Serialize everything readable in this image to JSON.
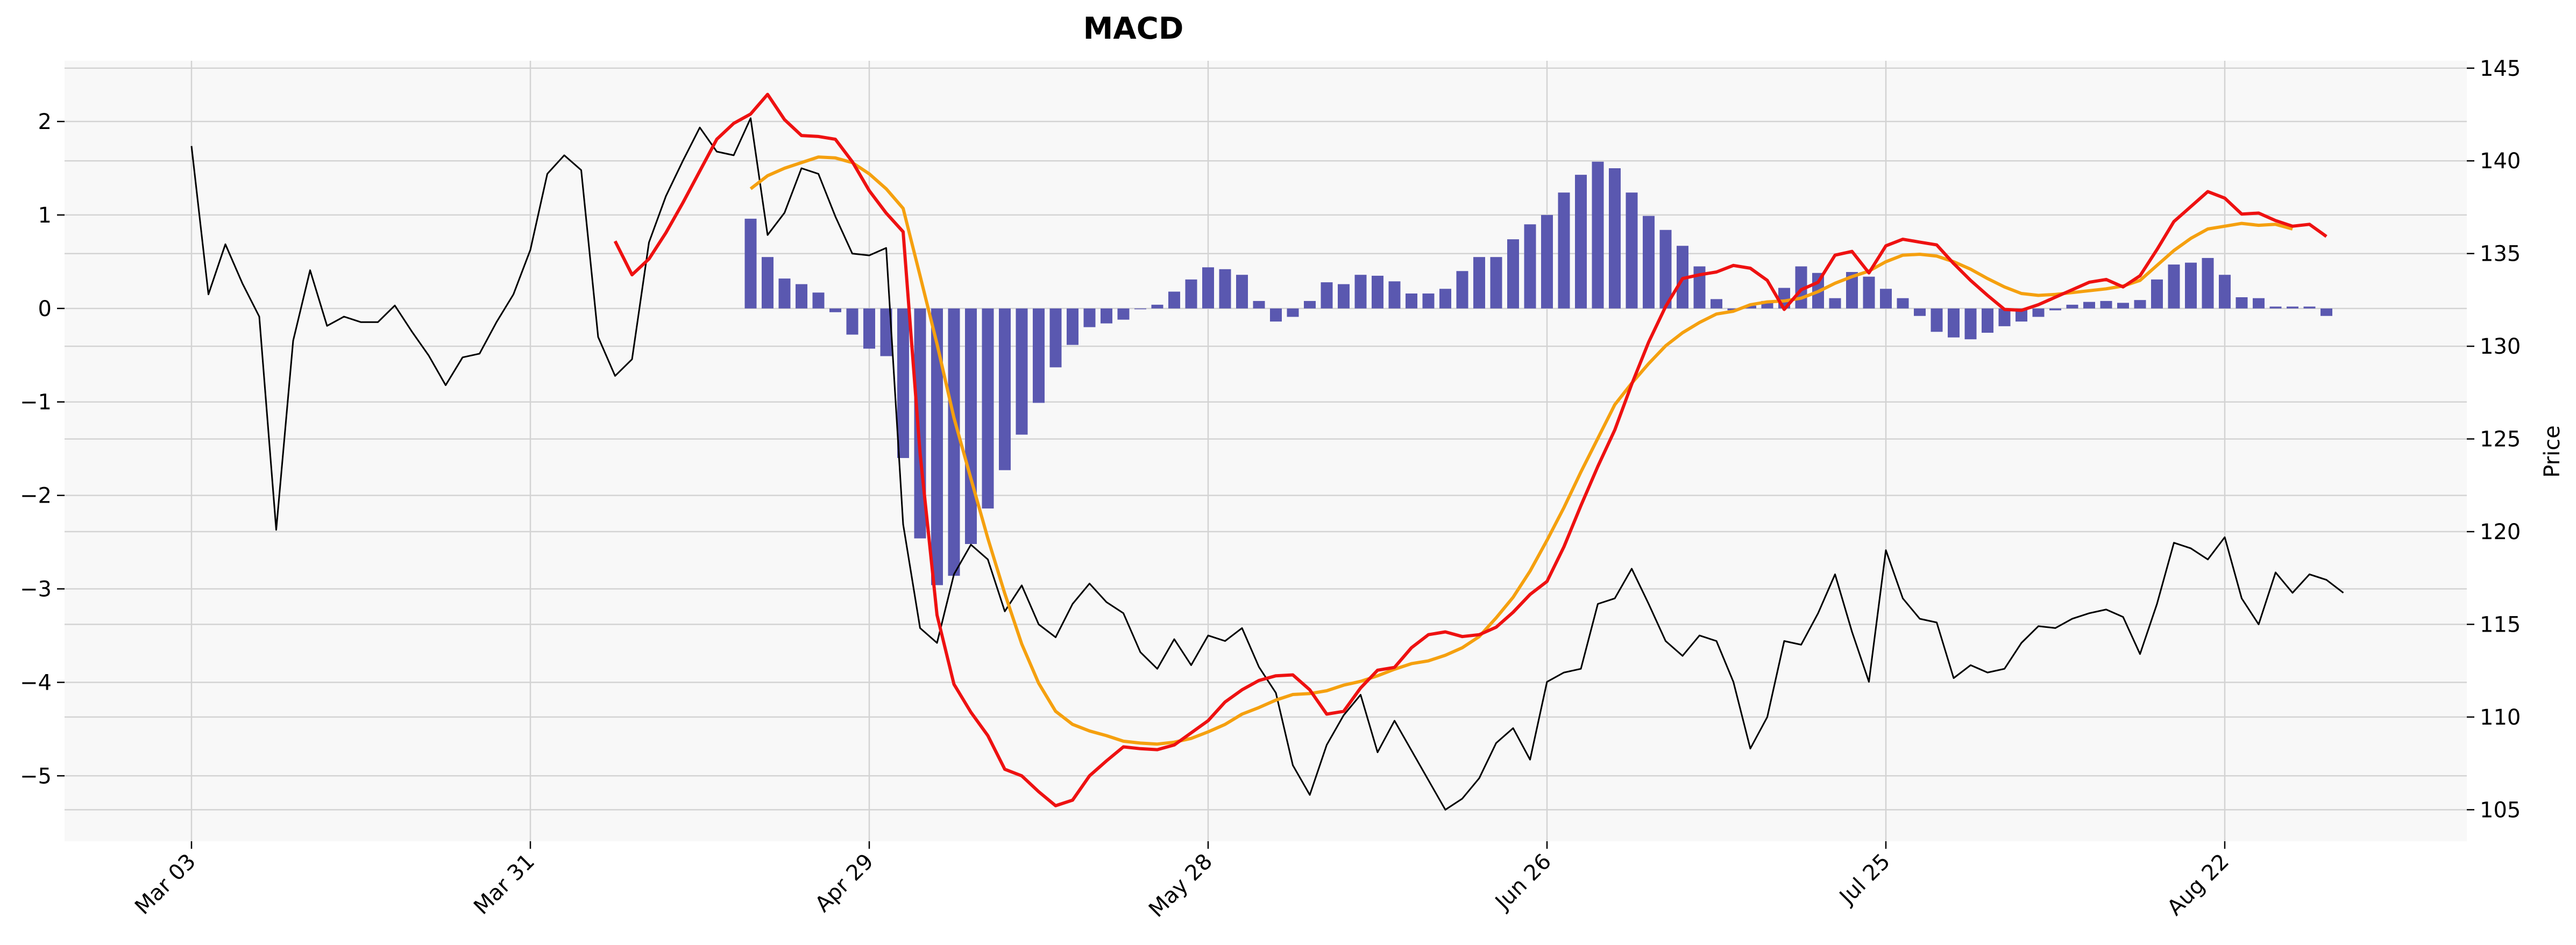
{
  "chart_data": {
    "type": "line",
    "title": "MACD",
    "xlabel": "",
    "ylabel": "",
    "ylabel_right": "Price",
    "x_tick_labels": [
      "Mar 03",
      "Mar 31",
      "Apr 29",
      "May 28",
      "Jun 26",
      "Jul 25",
      "Aug 22"
    ],
    "y_left_ticks": [
      2,
      1,
      0,
      -1,
      -2,
      -3,
      -4,
      -5
    ],
    "y_left_tick_labels": [
      "2",
      "1",
      "0",
      "−1",
      "−2",
      "−3",
      "−4",
      "−5"
    ],
    "ylim_left": [
      -5.7,
      2.65
    ],
    "y_right_ticks": [
      145,
      140,
      135,
      130,
      125,
      120,
      115,
      110,
      105
    ],
    "ylim_right": [
      103.3,
      145.4
    ],
    "grid": true,
    "legend": "none",
    "colors": {
      "macd": "#ee1111",
      "signal": "#f5a00f",
      "histogram": "#5a58b0",
      "price": "#000000",
      "plot_background": "#f8f8f8",
      "grid": "#d3d3d3"
    },
    "series": [
      {
        "kind": "price",
        "axis": "right",
        "start_index": 0,
        "values": [
          140.8,
          132.8,
          135.5,
          133.4,
          131.6,
          120.1,
          130.3,
          134.1,
          131.1,
          131.6,
          131.3,
          131.3,
          132.2,
          130.8,
          129.5,
          127.9,
          129.4,
          129.6,
          131.3,
          132.8,
          135.2,
          139.3,
          140.3,
          139.5,
          130.5,
          128.4,
          129.3,
          135.6,
          138.1,
          140.0,
          141.8,
          140.5,
          140.3,
          142.3,
          136.0,
          137.2,
          139.6,
          139.3,
          137.0,
          135.0,
          134.9,
          135.3,
          120.4,
          114.8,
          114.0,
          117.7,
          119.3,
          118.5,
          115.7,
          117.1,
          115.0,
          114.3,
          116.1,
          117.2,
          116.2,
          115.6,
          113.5,
          112.6,
          114.2,
          112.8,
          114.4,
          114.1,
          114.8,
          112.7,
          111.3,
          107.4,
          105.8,
          108.5,
          110.1,
          111.2,
          108.1,
          109.8,
          108.2,
          106.6,
          105.0,
          105.6,
          106.7,
          108.6,
          109.4,
          107.7,
          111.9,
          112.4,
          112.6,
          116.1,
          116.4,
          118.0,
          116.1,
          114.1,
          113.3,
          114.4,
          114.1,
          111.9,
          108.3,
          110.0,
          114.1,
          113.9,
          115.6,
          117.7,
          114.6,
          111.9,
          119.0,
          116.4,
          115.3,
          115.1,
          112.1,
          112.8,
          112.4,
          112.6,
          114.0,
          114.9,
          114.8,
          115.3,
          115.6,
          115.8,
          115.4,
          113.4,
          116.1,
          119.4,
          119.1,
          118.5,
          119.7,
          116.4,
          115.0,
          117.8,
          116.7,
          117.7,
          117.4,
          116.7
        ]
      },
      {
        "kind": "macd",
        "axis": "left",
        "start_index": 25,
        "values": [
          0.72,
          0.36,
          0.53,
          0.81,
          1.13,
          1.47,
          1.81,
          1.98,
          2.08,
          2.29,
          2.02,
          1.85,
          1.84,
          1.81,
          1.57,
          1.26,
          1.02,
          0.82,
          -1.55,
          -3.28,
          -4.02,
          -4.32,
          -4.57,
          -4.93,
          -5.0,
          -5.17,
          -5.32,
          -5.26,
          -5.0,
          -4.84,
          -4.69,
          -4.71,
          -4.72,
          -4.67,
          -4.54,
          -4.41,
          -4.21,
          -4.08,
          -3.98,
          -3.93,
          -3.92,
          -4.08,
          -4.34,
          -4.31,
          -4.06,
          -3.87,
          -3.84,
          -3.63,
          -3.49,
          -3.46,
          -3.51,
          -3.49,
          -3.41,
          -3.25,
          -3.06,
          -2.92,
          -2.55,
          -2.11,
          -1.69,
          -1.3,
          -0.81,
          -0.36,
          0.02,
          0.32,
          0.36,
          0.39,
          0.46,
          0.43,
          0.3,
          -0.01,
          0.2,
          0.28,
          0.57,
          0.61,
          0.38,
          0.67,
          0.74,
          0.71,
          0.68,
          0.48,
          0.3,
          0.14,
          -0.01,
          -0.02,
          0.04,
          0.12,
          0.2,
          0.28,
          0.31,
          0.23,
          0.35,
          0.63,
          0.93,
          1.09,
          1.25,
          1.18,
          1.01,
          1.02,
          0.94,
          0.88,
          0.9,
          0.77
        ]
      },
      {
        "kind": "signal",
        "axis": "left",
        "start_index": 33,
        "values": [
          1.28,
          1.42,
          1.5,
          1.56,
          1.62,
          1.61,
          1.56,
          1.44,
          1.28,
          1.07,
          0.35,
          -0.38,
          -1.17,
          -1.82,
          -2.46,
          -3.05,
          -3.59,
          -4.01,
          -4.31,
          -4.45,
          -4.52,
          -4.57,
          -4.63,
          -4.65,
          -4.66,
          -4.64,
          -4.6,
          -4.53,
          -4.45,
          -4.34,
          -4.27,
          -4.19,
          -4.13,
          -4.12,
          -4.09,
          -4.03,
          -3.99,
          -3.93,
          -3.86,
          -3.8,
          -3.77,
          -3.71,
          -3.63,
          -3.51,
          -3.31,
          -3.09,
          -2.81,
          -2.48,
          -2.13,
          -1.75,
          -1.39,
          -1.03,
          -0.8,
          -0.59,
          -0.4,
          -0.26,
          -0.15,
          -0.06,
          -0.03,
          0.04,
          0.07,
          0.08,
          0.11,
          0.18,
          0.27,
          0.34,
          0.4,
          0.5,
          0.57,
          0.58,
          0.56,
          0.5,
          0.42,
          0.32,
          0.23,
          0.16,
          0.14,
          0.15,
          0.17,
          0.19,
          0.21,
          0.24,
          0.3,
          0.46,
          0.62,
          0.75,
          0.85,
          0.88,
          0.91,
          0.89,
          0.9,
          0.85
        ]
      },
      {
        "kind": "histogram",
        "axis": "left",
        "start_index": 33,
        "values": [
          0.96,
          0.55,
          0.32,
          0.26,
          0.17,
          -0.04,
          -0.28,
          -0.43,
          -0.51,
          -1.6,
          -2.46,
          -2.96,
          -2.86,
          -2.52,
          -2.14,
          -1.73,
          -1.35,
          -1.01,
          -0.63,
          -0.39,
          -0.2,
          -0.16,
          -0.12,
          0.0,
          0.04,
          0.18,
          0.31,
          0.44,
          0.42,
          0.36,
          0.08,
          -0.14,
          -0.09,
          0.08,
          0.28,
          0.26,
          0.36,
          0.35,
          0.29,
          0.16,
          0.16,
          0.21,
          0.4,
          0.55,
          0.55,
          0.74,
          0.9,
          1.0,
          1.24,
          1.43,
          1.57,
          1.5,
          1.24,
          0.99,
          0.84,
          0.67,
          0.45,
          0.1,
          -0.02,
          0.03,
          0.08,
          0.22,
          0.45,
          0.38,
          0.11,
          0.39,
          0.34,
          0.21,
          0.11,
          -0.08,
          -0.25,
          -0.31,
          -0.33,
          -0.26,
          -0.19,
          -0.14,
          -0.09,
          -0.02,
          0.04,
          0.07,
          0.08,
          0.06,
          0.09,
          0.31,
          0.47,
          0.49,
          0.54,
          0.36,
          0.12,
          0.11,
          0.02,
          0.02,
          0.02,
          -0.08
        ]
      }
    ]
  }
}
